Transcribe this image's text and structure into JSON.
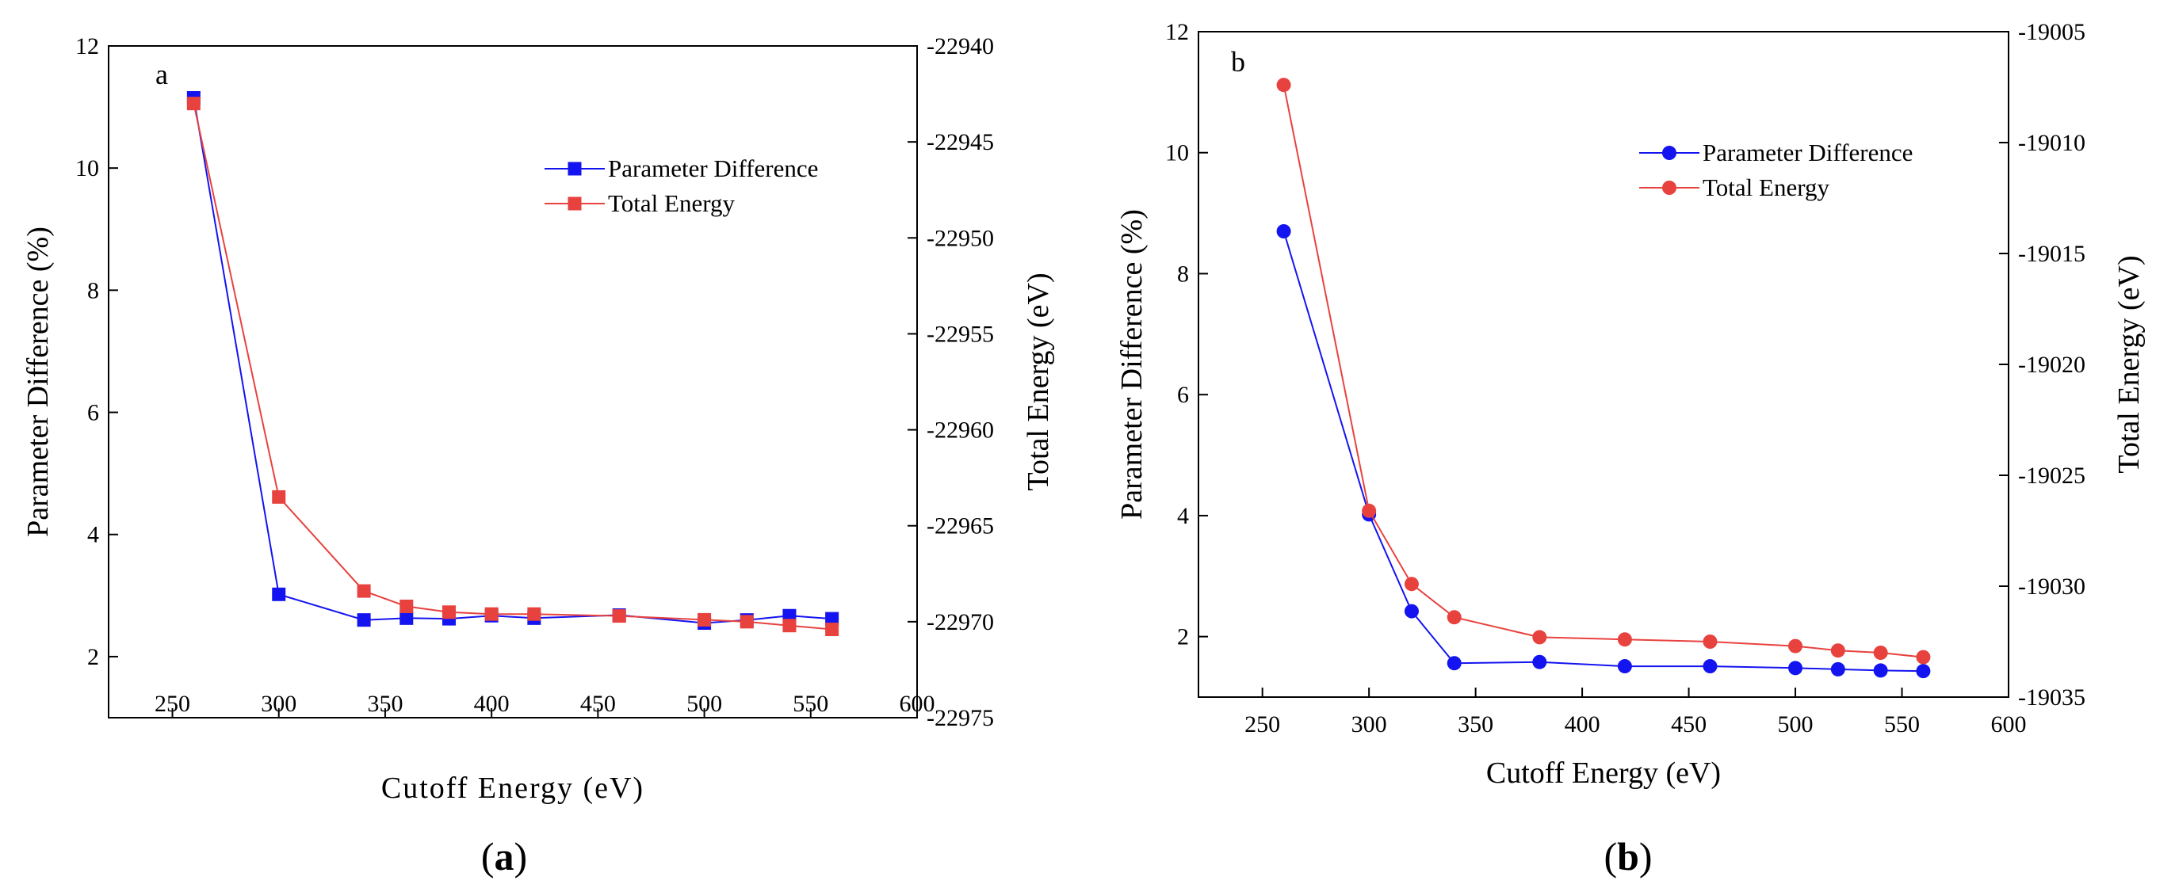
{
  "chart_data": [
    {
      "id": "a",
      "type": "line",
      "panel_label": "a",
      "caption_open": "(",
      "caption_letter": "a",
      "caption_close": ")",
      "xlabel": "Cutoff Energy (eV)",
      "ylabel": "Parameter Difference (%)",
      "y2label": "Total Energy (eV)",
      "xlim": [
        220,
        600
      ],
      "ylim": [
        1,
        12
      ],
      "y2lim": [
        -22975,
        -22940
      ],
      "xticks": [
        250,
        300,
        350,
        400,
        450,
        500,
        550,
        600
      ],
      "yticks": [
        2,
        4,
        6,
        8,
        10,
        12
      ],
      "y2ticks": [
        -22975,
        -22970,
        -22965,
        -22960,
        -22955,
        -22950,
        -22945,
        -22940
      ],
      "legend_position": "top-right",
      "marker": "square",
      "series": [
        {
          "name": "Parameter Difference",
          "axis": "left",
          "color": "#1414f0",
          "x": [
            260,
            300,
            340,
            360,
            380,
            400,
            420,
            460,
            500,
            520,
            540,
            560
          ],
          "values": [
            11.15,
            3.02,
            2.6,
            2.63,
            2.62,
            2.67,
            2.63,
            2.68,
            2.55,
            2.6,
            2.67,
            2.62
          ]
        },
        {
          "name": "Total Energy",
          "axis": "right",
          "color": "#e8423f",
          "x": [
            260,
            300,
            340,
            360,
            380,
            400,
            420,
            460,
            500,
            520,
            540,
            560
          ],
          "values": [
            -22943.0,
            -22963.5,
            -22968.4,
            -22969.2,
            -22969.5,
            -22969.6,
            -22969.6,
            -22969.7,
            -22969.9,
            -22970.0,
            -22970.2,
            -22970.4
          ]
        }
      ]
    },
    {
      "id": "b",
      "type": "line",
      "panel_label": "b",
      "caption_open": "(",
      "caption_letter": "b",
      "caption_close": ")",
      "xlabel": "Cutoff Energy (eV)",
      "ylabel": "Parameter Difference (%)",
      "y2label": "Total Energy (eV)",
      "xlim": [
        220,
        600
      ],
      "ylim": [
        1,
        12
      ],
      "y2lim": [
        -19035,
        -19005
      ],
      "xticks": [
        250,
        300,
        350,
        400,
        450,
        500,
        550,
        600
      ],
      "yticks": [
        2,
        4,
        6,
        8,
        10,
        12
      ],
      "y2ticks": [
        -19035,
        -19030,
        -19025,
        -19020,
        -19015,
        -19010,
        -19005
      ],
      "legend_position": "top-right",
      "marker": "circle",
      "series": [
        {
          "name": "Parameter Difference",
          "axis": "left",
          "color": "#1414f0",
          "x": [
            260,
            300,
            320,
            340,
            380,
            420,
            460,
            500,
            520,
            540,
            560
          ],
          "values": [
            8.7,
            4.02,
            2.42,
            1.56,
            1.58,
            1.51,
            1.51,
            1.48,
            1.46,
            1.44,
            1.43
          ]
        },
        {
          "name": "Total Energy",
          "axis": "right",
          "color": "#e8423f",
          "x": [
            260,
            300,
            320,
            340,
            380,
            420,
            460,
            500,
            520,
            540,
            560
          ],
          "values": [
            -19007.4,
            -19026.6,
            -19029.9,
            -19031.4,
            -19032.3,
            -19032.4,
            -19032.5,
            -19032.7,
            -19032.9,
            -19033.0,
            -19033.2
          ]
        }
      ]
    }
  ]
}
